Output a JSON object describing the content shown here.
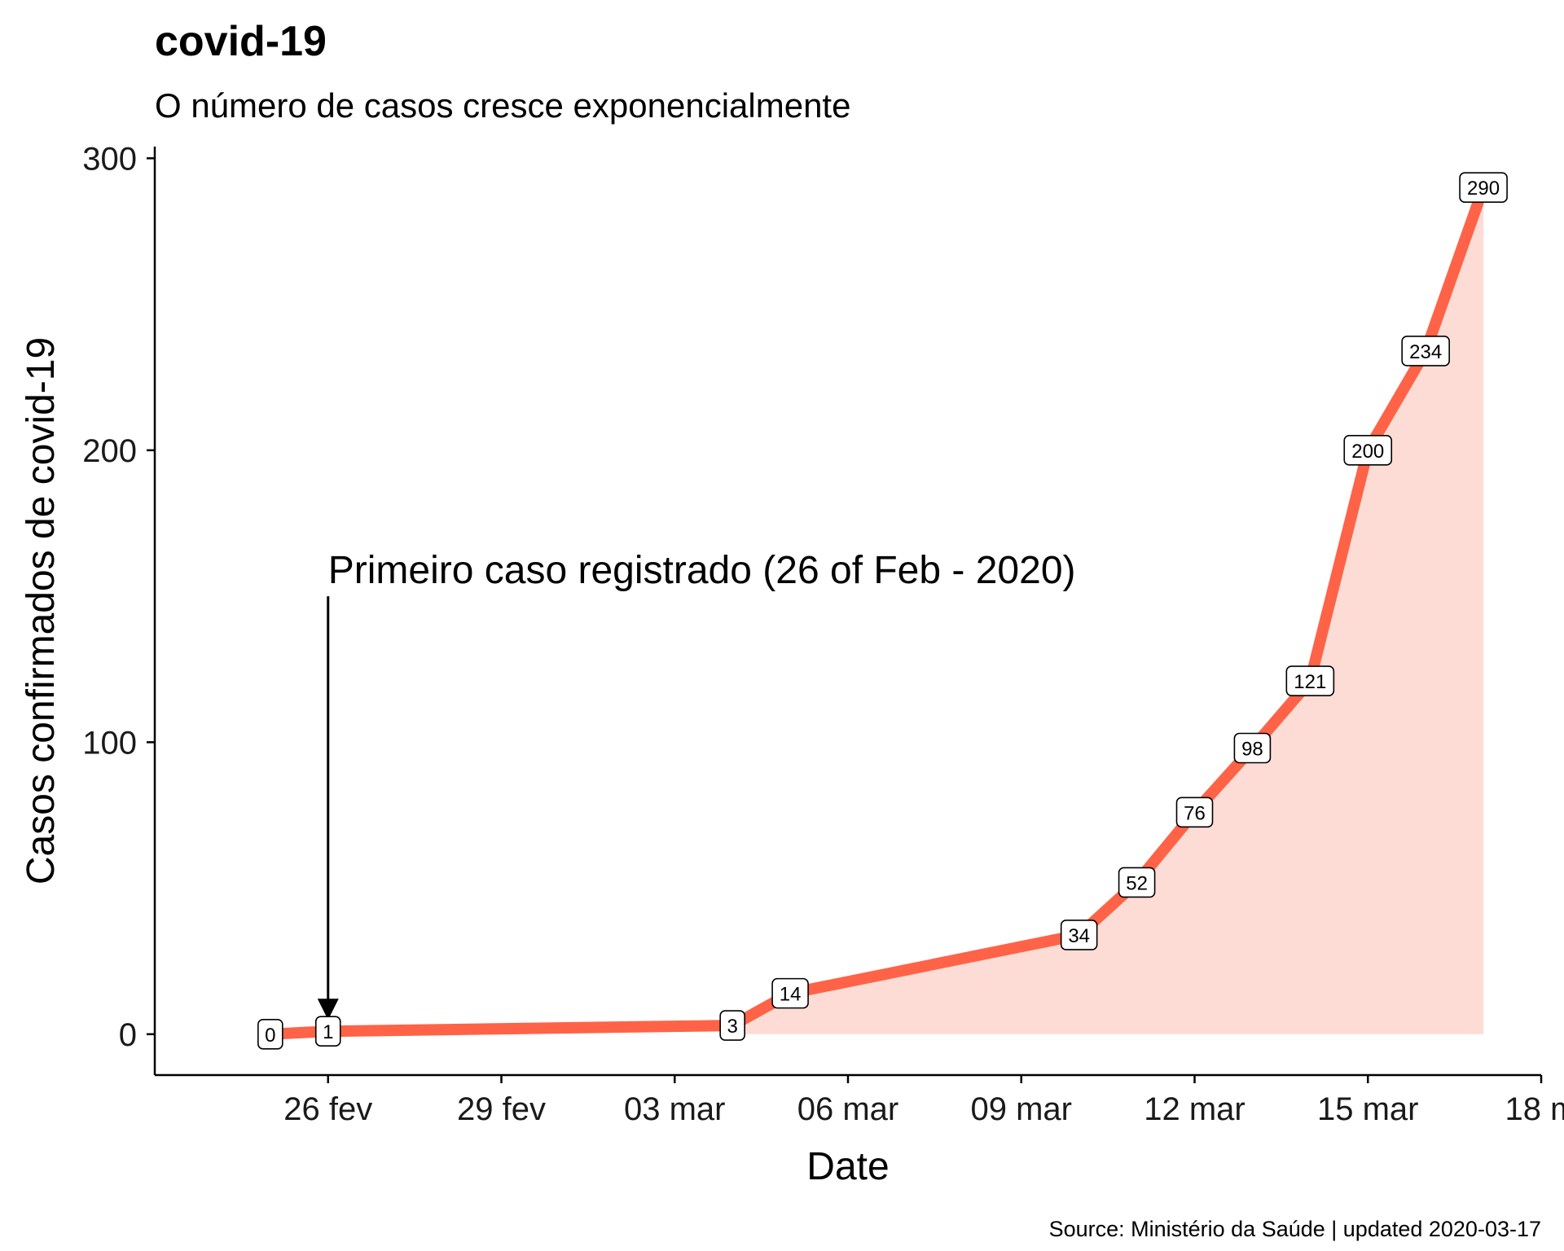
{
  "chart_data": {
    "type": "area",
    "title": "covid-19",
    "subtitle": "O número de casos cresce exponencialmente",
    "xlabel": "Date",
    "ylabel": "Casos confirmados de covid-19",
    "caption": "Source: Ministério da Saúde | updated 2020-03-17",
    "ylim": [
      -14,
      304
    ],
    "xlim": [
      "2020-02-23",
      "2020-03-18"
    ],
    "yticks": [
      0,
      100,
      200,
      300
    ],
    "xticks": [
      {
        "date": "2020-02-26",
        "label": "26 fev"
      },
      {
        "date": "2020-02-29",
        "label": "29 fev"
      },
      {
        "date": "2020-03-03",
        "label": "03 mar"
      },
      {
        "date": "2020-03-06",
        "label": "06 mar"
      },
      {
        "date": "2020-03-09",
        "label": "09 mar"
      },
      {
        "date": "2020-03-12",
        "label": "12 mar"
      },
      {
        "date": "2020-03-15",
        "label": "15 mar"
      },
      {
        "date": "2020-03-18",
        "label": "18 m"
      }
    ],
    "series": [
      {
        "x": [
          "2020-02-25",
          "2020-02-26",
          "2020-03-04",
          "2020-03-05",
          "2020-03-10",
          "2020-03-11",
          "2020-03-12",
          "2020-03-13",
          "2020-03-14",
          "2020-03-15",
          "2020-03-16",
          "2020-03-17"
        ],
        "values": [
          0,
          1,
          3,
          14,
          34,
          52,
          76,
          98,
          121,
          200,
          234,
          290
        ]
      }
    ],
    "area_start": "2020-03-04",
    "annotation": {
      "text": "Primeiro caso registrado (26 of Feb - 2020)",
      "x": "2020-02-26",
      "y_from": 150,
      "y_to": 1
    },
    "colors": {
      "line": "#ff6347",
      "area": "#fddcd5",
      "axis": "#000000"
    },
    "grid": false,
    "legend": "none"
  }
}
